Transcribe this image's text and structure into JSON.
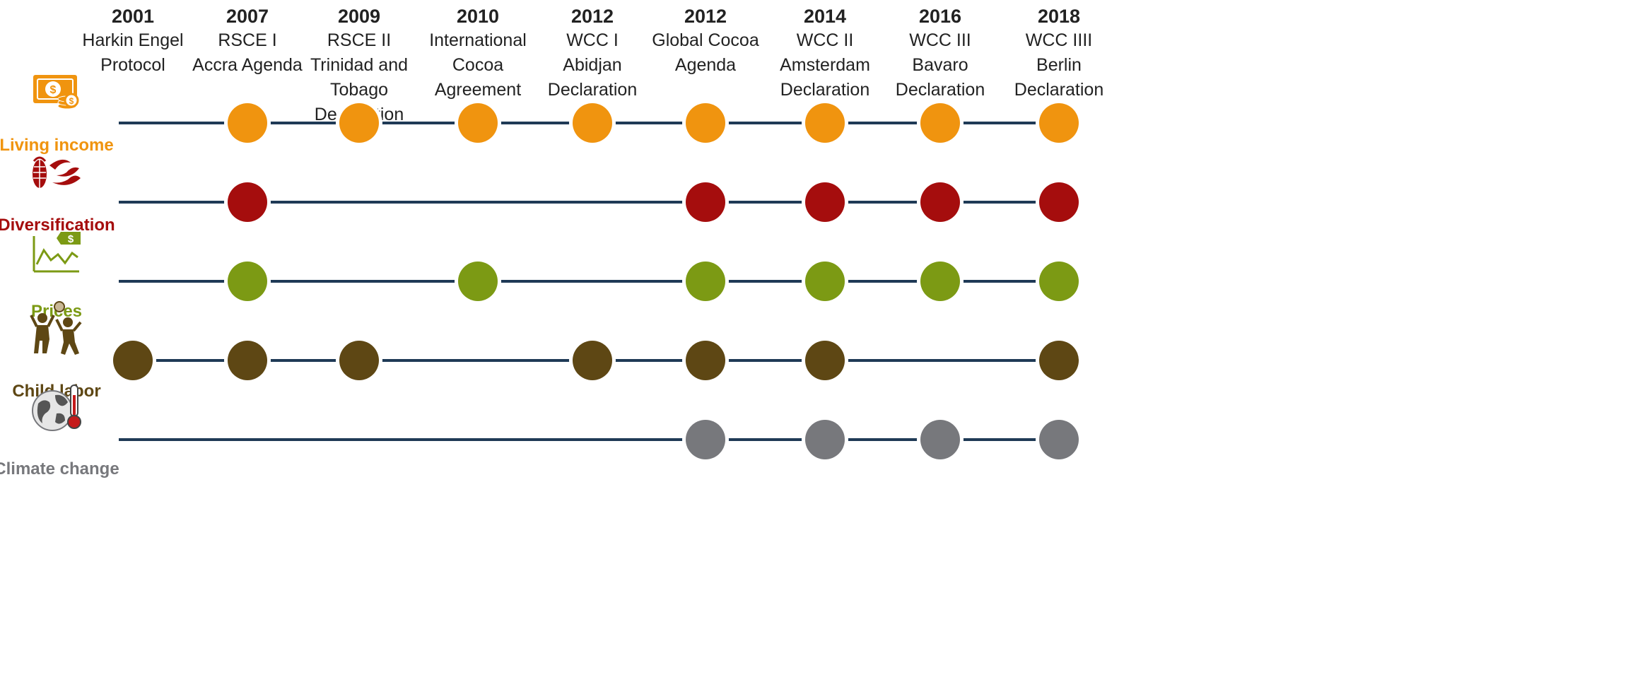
{
  "events": [
    {
      "year": "2001",
      "name": "Harkin Engel\nProtocol"
    },
    {
      "year": "2007",
      "name": "RSCE I\nAccra Agenda"
    },
    {
      "year": "2009",
      "name": "RSCE II\nTrinidad and\nTobago\nDeclaration"
    },
    {
      "year": "2010",
      "name": "International\nCocoa\nAgreement"
    },
    {
      "year": "2012",
      "name": "WCC I\nAbidjan\nDeclaration"
    },
    {
      "year": "2012",
      "name": "Global Cocoa\nAgenda"
    },
    {
      "year": "2014",
      "name": "WCC II\nAmsterdam\nDeclaration"
    },
    {
      "year": "2016",
      "name": "WCC III\nBavaro\nDeclaration"
    },
    {
      "year": "2018",
      "name": "WCC IIII\nBerlin\nDeclaration"
    }
  ],
  "rows": [
    {
      "label": "Living income",
      "icon": "money-coins-icon",
      "color": "#f0940f",
      "present": [
        false,
        true,
        true,
        true,
        true,
        true,
        true,
        true,
        true
      ]
    },
    {
      "label": "Diversification",
      "icon": "crops-icon",
      "color": "#a50d0d",
      "present": [
        false,
        true,
        false,
        false,
        false,
        true,
        true,
        true,
        true
      ]
    },
    {
      "label": "Prices",
      "icon": "price-chart-icon",
      "color": "#7c9a14",
      "present": [
        false,
        true,
        false,
        true,
        false,
        true,
        true,
        true,
        true
      ]
    },
    {
      "label": "Child labor",
      "icon": "children-playing-icon",
      "color": "#5e4714",
      "present": [
        true,
        true,
        true,
        false,
        true,
        true,
        true,
        false,
        true
      ]
    },
    {
      "label": "Climate change",
      "icon": "globe-thermometer-icon",
      "color": "#77787c",
      "present": [
        false,
        false,
        false,
        false,
        false,
        true,
        true,
        true,
        true
      ]
    }
  ]
}
